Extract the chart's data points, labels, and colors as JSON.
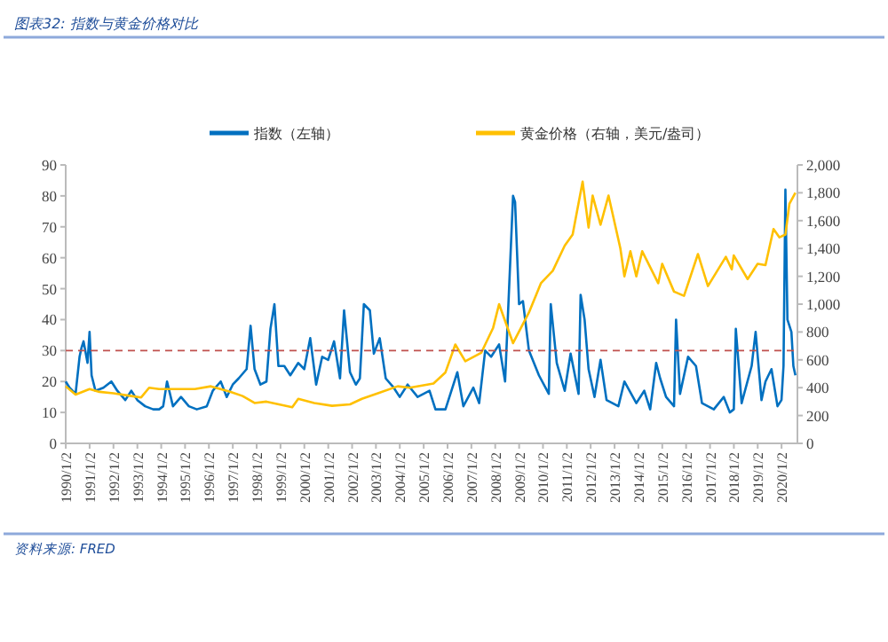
{
  "chart_data": {
    "type": "line",
    "title": "图表32: 指数与黄金价格对比",
    "annotations": [
      "资料来源: FRED"
    ],
    "legend": "top",
    "grid": false,
    "line_style": "solid",
    "xlim": [
      "1990-01-01",
      "2020-09-01"
    ],
    "xticks": [
      {
        "value": "1990-01-02",
        "label": "1990/1/2"
      },
      {
        "value": "1991-01-02",
        "label": "1991/1/2"
      },
      {
        "value": "1992-01-02",
        "label": "1992/1/2"
      },
      {
        "value": "1993-01-02",
        "label": "1993/1/2"
      },
      {
        "value": "1994-01-02",
        "label": "1994/1/2"
      },
      {
        "value": "1995-01-02",
        "label": "1995/1/2"
      },
      {
        "value": "1996-01-02",
        "label": "1996/1/2"
      },
      {
        "value": "1997-01-02",
        "label": "1997/1/2"
      },
      {
        "value": "1998-01-02",
        "label": "1998/1/2"
      },
      {
        "value": "1999-01-02",
        "label": "1999/1/2"
      },
      {
        "value": "2000-01-02",
        "label": "2000/1/2"
      },
      {
        "value": "2001-01-02",
        "label": "2001/1/2"
      },
      {
        "value": "2002-01-02",
        "label": "2002/1/2"
      },
      {
        "value": "2003-01-02",
        "label": "2003/1/2"
      },
      {
        "value": "2004-01-02",
        "label": "2004/1/2"
      },
      {
        "value": "2005-01-02",
        "label": "2005/1/2"
      },
      {
        "value": "2006-01-02",
        "label": "2006/1/2"
      },
      {
        "value": "2007-01-02",
        "label": "2007/1/2"
      },
      {
        "value": "2008-01-02",
        "label": "2008/1/2"
      },
      {
        "value": "2009-01-02",
        "label": "2009/1/2"
      },
      {
        "value": "2010-01-02",
        "label": "2010/1/2"
      },
      {
        "value": "2011-01-02",
        "label": "2011/1/2"
      },
      {
        "value": "2012-01-02",
        "label": "2012/1/2"
      },
      {
        "value": "2013-01-02",
        "label": "2013/1/2"
      },
      {
        "value": "2014-01-02",
        "label": "2014/1/2"
      },
      {
        "value": "2015-01-02",
        "label": "2015/1/2"
      },
      {
        "value": "2016-01-02",
        "label": "2016/1/2"
      },
      {
        "value": "2017-01-02",
        "label": "2017/1/2"
      },
      {
        "value": "2018-01-02",
        "label": "2018/1/2"
      },
      {
        "value": "2019-01-02",
        "label": "2019/1/2"
      },
      {
        "value": "2020-01-02",
        "label": "2020/1/2"
      }
    ],
    "ylim": [
      0,
      90
    ],
    "yticks": [
      0,
      10,
      20,
      30,
      40,
      50,
      60,
      70,
      80,
      90
    ],
    "y2lim": [
      0,
      2000
    ],
    "y2ticks": [
      0,
      200,
      400,
      600,
      800,
      {
        "value": 1000,
        "label": "1,000"
      },
      {
        "value": 1200,
        "label": "1,200"
      },
      {
        "value": 1400,
        "label": "1,400"
      },
      {
        "value": 1600,
        "label": "1,600"
      },
      {
        "value": 1800,
        "label": "1,800"
      },
      {
        "value": 2000,
        "label": "2,000"
      }
    ],
    "ref_lines": [
      {
        "axis": "y",
        "value": 30,
        "color": "#c0504d",
        "line_style": "dashed"
      }
    ],
    "series": [
      {
        "name": "指数（左轴）",
        "color": "#0070c0",
        "x": [
          "1990-01",
          "1990-03",
          "1990-06",
          "1990-08",
          "1990-09",
          "1990-10",
          "1990-12",
          "1991-01",
          "1991-02",
          "1991-04",
          "1991-08",
          "1991-12",
          "1992-03",
          "1992-07",
          "1992-10",
          "1993-01",
          "1993-05",
          "1993-09",
          "1993-12",
          "1994-02",
          "1994-04",
          "1994-07",
          "1994-11",
          "1995-03",
          "1995-07",
          "1995-12",
          "1996-03",
          "1996-07",
          "1996-10",
          "1997-01",
          "1997-04",
          "1997-08",
          "1997-10",
          "1997-12",
          "1998-03",
          "1998-06",
          "1998-08",
          "1998-10",
          "1998-12",
          "1999-03",
          "1999-06",
          "1999-10",
          "2000-01",
          "2000-04",
          "2000-07",
          "2000-10",
          "2001-01",
          "2001-04",
          "2001-07",
          "2001-09",
          "2001-12",
          "2002-03",
          "2002-05",
          "2002-07",
          "2002-10",
          "2002-12",
          "2003-03",
          "2003-06",
          "2003-10",
          "2004-01",
          "2004-05",
          "2004-10",
          "2005-04",
          "2005-07",
          "2005-12",
          "2006-06",
          "2006-09",
          "2007-02",
          "2007-05",
          "2007-08",
          "2007-11",
          "2008-03",
          "2008-06",
          "2008-10",
          "2008-11",
          "2009-01",
          "2009-03",
          "2009-06",
          "2009-11",
          "2010-04",
          "2010-05",
          "2010-08",
          "2010-12",
          "2011-03",
          "2011-07",
          "2011-08",
          "2011-10",
          "2011-12",
          "2012-03",
          "2012-06",
          "2012-09",
          "2013-03",
          "2013-06",
          "2013-12",
          "2014-04",
          "2014-07",
          "2014-10",
          "2014-12",
          "2015-03",
          "2015-07",
          "2015-08",
          "2015-10",
          "2016-02",
          "2016-06",
          "2016-09",
          "2017-03",
          "2017-08",
          "2017-11",
          "2018-01",
          "2018-02",
          "2018-05",
          "2018-10",
          "2018-12",
          "2019-03",
          "2019-05",
          "2019-08",
          "2019-11",
          "2020-01",
          "2020-02",
          "2020-03",
          "2020-04",
          "2020-06",
          "2020-07",
          "2020-08"
        ],
        "values": [
          20,
          18,
          16,
          28,
          31,
          33,
          26,
          36,
          22,
          17,
          18,
          20,
          17,
          14,
          17,
          14,
          12,
          11,
          11,
          12,
          20,
          12,
          15,
          12,
          11,
          12,
          17,
          20,
          15,
          19,
          21,
          24,
          38,
          24,
          19,
          20,
          37,
          45,
          25,
          25,
          22,
          26,
          24,
          34,
          19,
          28,
          27,
          33,
          21,
          43,
          23,
          19,
          21,
          45,
          43,
          29,
          34,
          21,
          18,
          15,
          19,
          15,
          17,
          11,
          11,
          23,
          12,
          18,
          13,
          30,
          28,
          32,
          20,
          80,
          78,
          45,
          46,
          30,
          22,
          16,
          45,
          26,
          17,
          29,
          16,
          48,
          40,
          24,
          15,
          27,
          14,
          12,
          20,
          13,
          17,
          11,
          26,
          21,
          15,
          12,
          40,
          16,
          28,
          25,
          13,
          11,
          15,
          10,
          11,
          37,
          13,
          25,
          36,
          14,
          20,
          24,
          12,
          14,
          25,
          82,
          40,
          36,
          25,
          22
        ]
      },
      {
        "name": "黄金价格（右轴，美元/盎司）",
        "color": "#ffc000",
        "axis": "y2",
        "x": [
          "1990-01",
          "1990-06",
          "1991-01",
          "1991-06",
          "1992-01",
          "1992-10",
          "1993-03",
          "1993-07",
          "1993-12",
          "1994-06",
          "1995-06",
          "1996-02",
          "1996-12",
          "1997-06",
          "1997-12",
          "1998-06",
          "1999-07",
          "1999-10",
          "2000-06",
          "2001-03",
          "2001-12",
          "2002-06",
          "2003-02",
          "2003-12",
          "2004-06",
          "2005-06",
          "2005-12",
          "2006-05",
          "2006-10",
          "2007-06",
          "2007-12",
          "2008-03",
          "2008-10",
          "2009-06",
          "2009-12",
          "2010-06",
          "2010-12",
          "2011-04",
          "2011-09",
          "2011-12",
          "2012-02",
          "2012-06",
          "2012-10",
          "2013-04",
          "2013-06",
          "2013-09",
          "2013-12",
          "2014-03",
          "2014-11",
          "2015-01",
          "2015-07",
          "2015-12",
          "2016-07",
          "2016-12",
          "2017-09",
          "2017-12",
          "2018-01",
          "2018-08",
          "2019-01",
          "2019-05",
          "2019-09",
          "2019-12",
          "2020-03",
          "2020-05",
          "2020-08"
        ],
        "values": [
          410,
          350,
          390,
          370,
          360,
          340,
          330,
          400,
          390,
          390,
          390,
          410,
          370,
          340,
          290,
          300,
          260,
          320,
          290,
          270,
          280,
          320,
          360,
          410,
          400,
          430,
          510,
          710,
          590,
          650,
          830,
          1000,
          720,
          940,
          1150,
          1240,
          1420,
          1500,
          1880,
          1550,
          1780,
          1570,
          1780,
          1400,
          1200,
          1380,
          1200,
          1380,
          1150,
          1290,
          1090,
          1060,
          1360,
          1130,
          1340,
          1250,
          1350,
          1180,
          1290,
          1280,
          1540,
          1480,
          1500,
          1720,
          1800
        ]
      }
    ]
  }
}
